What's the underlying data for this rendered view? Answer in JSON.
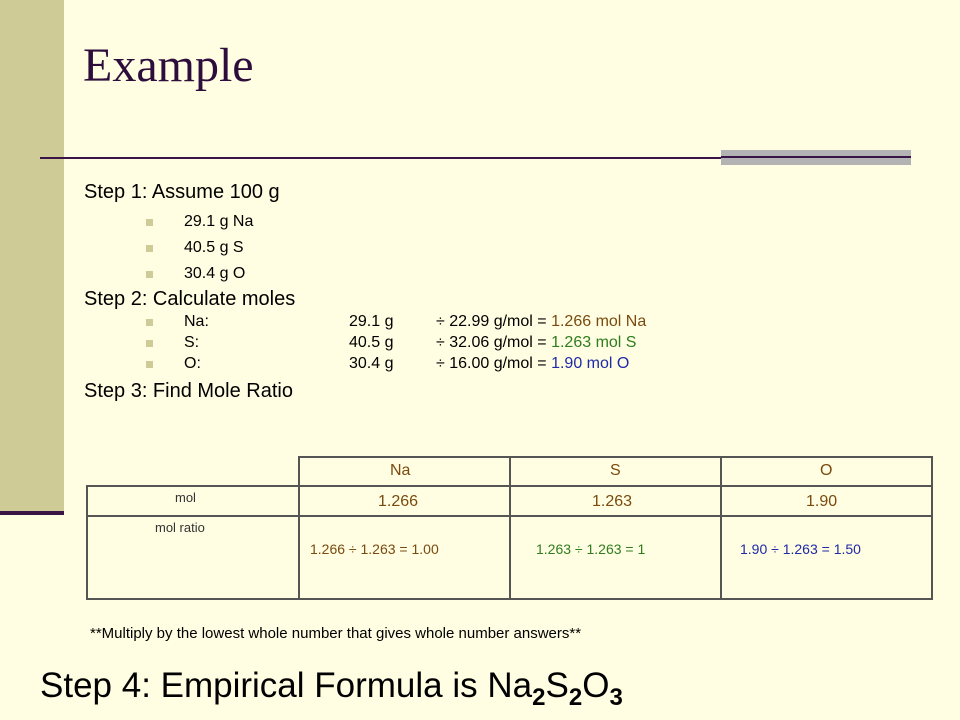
{
  "title": "Example",
  "step1": {
    "heading": "Step 1: Assume 100 g",
    "items": [
      "29.1 g Na",
      "40.5 g S",
      "30.4 g O"
    ]
  },
  "step2": {
    "heading": "Step 2: Calculate moles",
    "rows": [
      {
        "element": "Na:",
        "mass": "29.1 g",
        "calc": "÷ 22.99 g/mol = ",
        "result": "1.266 mol Na",
        "color": "#7a4a0f"
      },
      {
        "element": "S:",
        "mass": "40.5 g",
        "calc": "÷ 32.06 g/mol = ",
        "result": "1.263 mol S",
        "color": "#2e7d1e"
      },
      {
        "element": "O:",
        "mass": "30.4 g",
        "calc": "÷ 16.00 g/mol = ",
        "result": "1.90 mol O",
        "color": "#1f2aa6"
      }
    ]
  },
  "step3": {
    "heading": "Step 3: Find Mole Ratio"
  },
  "table": {
    "headers": [
      "Na",
      "S",
      "O"
    ],
    "row_labels": [
      "mol",
      "mol ratio"
    ],
    "mol": [
      "1.266",
      "1.263",
      "1.90"
    ],
    "ratio": [
      "1.266 ÷ 1.263  = 1.00",
      "1.263 ÷ 1.263 = 1",
      "1.90 ÷ 1.263  = 1.50"
    ]
  },
  "note": "**Multiply by the lowest whole number that gives whole number answers**",
  "step4": {
    "prefix": "Step 4: Empirical Formula is ",
    "formula": [
      {
        "symbol": "Na",
        "subscript": "2"
      },
      {
        "symbol": "S",
        "subscript": "2"
      },
      {
        "symbol": "O",
        "subscript": "3"
      }
    ]
  },
  "colors": {
    "na": "#7a4a0f",
    "s": "#2e7d1e",
    "o": "#1f2aa6",
    "accent": "#cfcb97",
    "title": "#2c0d3c"
  }
}
